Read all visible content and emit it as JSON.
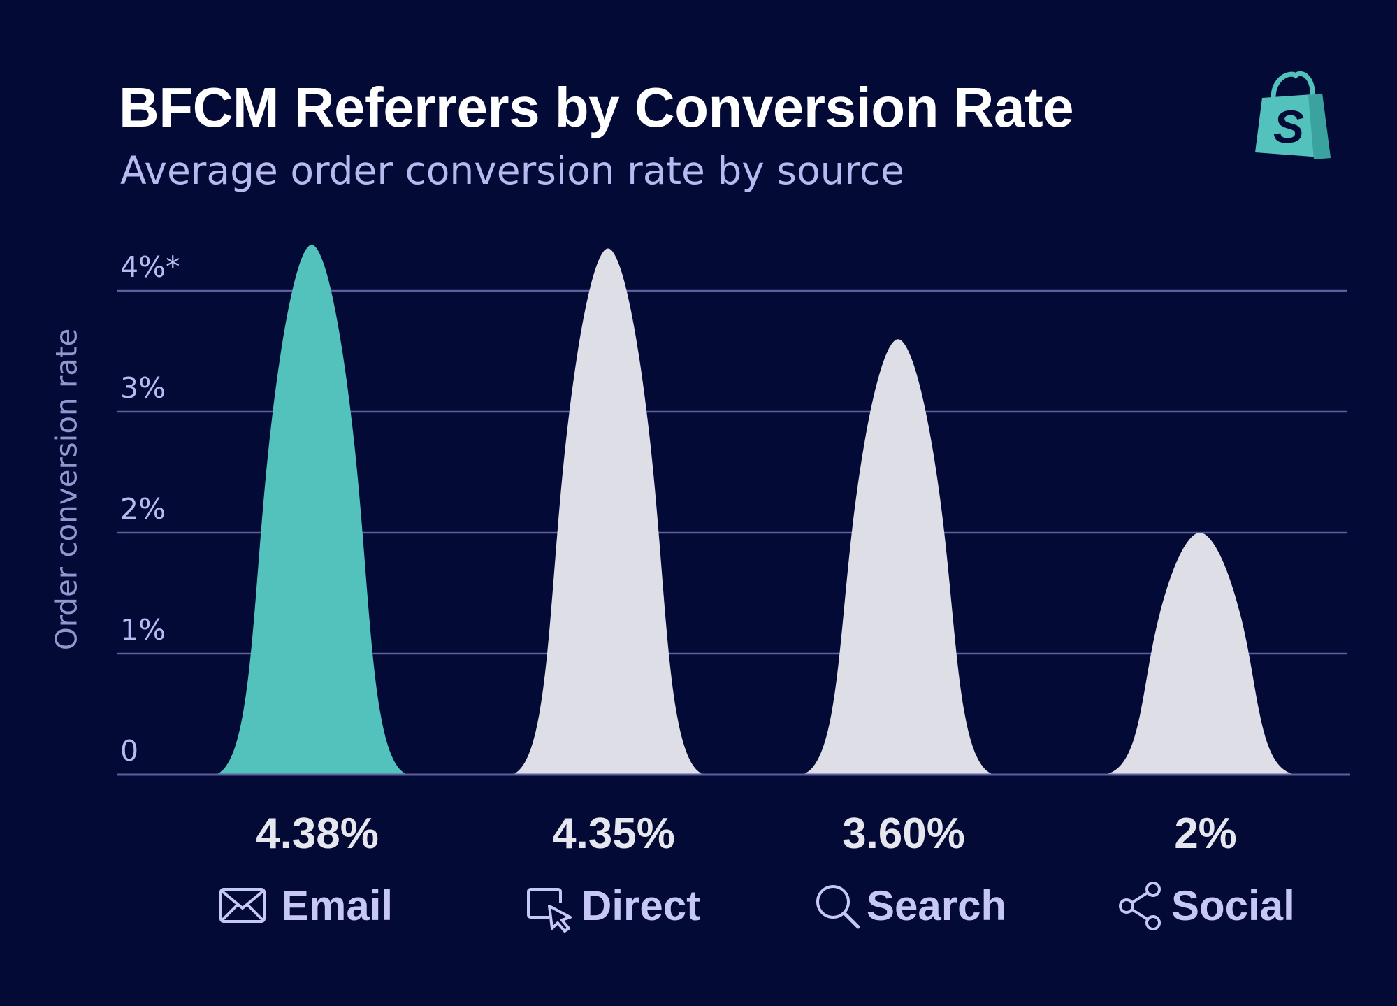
{
  "header": {
    "title": "BFCM Referrers by Conversion Rate",
    "subtitle": "Average order conversion rate by source",
    "logo_icon": "shopify-bag-logo"
  },
  "colors": {
    "background": "#030a35",
    "highlight": "#53c2bd",
    "default_bar": "#dedee6",
    "grid": "#5e5fa1",
    "tick_text": "#b9b9f1",
    "value_text": "#e6e6ee",
    "category_text": "#c7c7f6"
  },
  "chart_data": {
    "type": "area",
    "title": "BFCM Referrers by Conversion Rate",
    "subtitle": "Average order conversion rate by source",
    "ylabel": "Order conversion rate",
    "xlabel": "",
    "ylim": [
      0,
      4
    ],
    "yticks": [
      0,
      1,
      2,
      3,
      4
    ],
    "ytick_labels": [
      "0",
      "1%",
      "2%",
      "3%",
      "4%*"
    ],
    "grid": true,
    "categories": [
      "Email",
      "Direct",
      "Search",
      "Social"
    ],
    "category_icons": [
      "envelope-icon",
      "cursor-screen-icon",
      "search-icon",
      "share-icon"
    ],
    "values": [
      4.38,
      4.35,
      3.6,
      2
    ],
    "value_labels": [
      "4.38%",
      "4.35%",
      "3.60%",
      "2%"
    ],
    "highlight_index": 0
  }
}
